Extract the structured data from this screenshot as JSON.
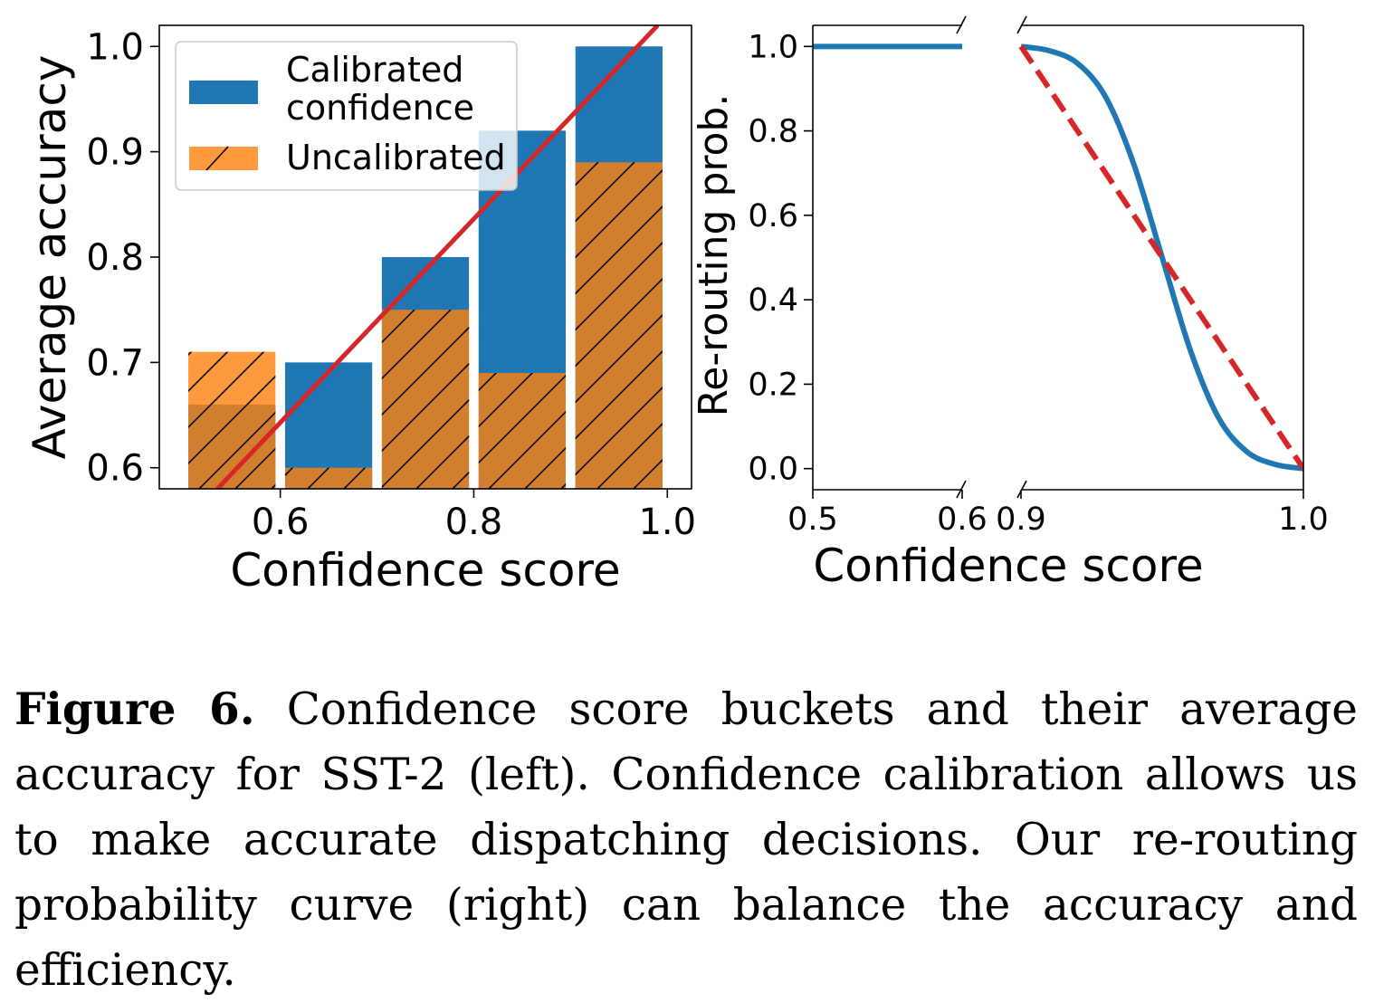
{
  "chart_data": [
    {
      "type": "bar",
      "xlabel": "Confidence score",
      "ylabel": "Average accuracy",
      "xlim": [
        0.475,
        1.025
      ],
      "ylim": [
        0.58,
        1.02
      ],
      "xticks": [
        0.6,
        0.8,
        1.0
      ],
      "xtick_labels": [
        "0.6",
        "0.8",
        "1.0"
      ],
      "yticks": [
        0.6,
        0.7,
        0.8,
        0.9,
        1.0
      ],
      "ytick_labels": [
        "0.6",
        "0.7",
        "0.8",
        "0.9",
        "1.0"
      ],
      "bucket_centers": [
        0.55,
        0.65,
        0.75,
        0.85,
        0.95
      ],
      "bar_width": 0.09,
      "series": [
        {
          "name": "Calibrated\nconfidence",
          "color": "#1f77b4",
          "values": [
            0.66,
            0.7,
            0.8,
            0.92,
            1.0
          ]
        },
        {
          "name": "Uncalibrated",
          "color": "#ff7f0e",
          "hatch": "/",
          "alpha": 0.8,
          "values": [
            0.71,
            0.6,
            0.75,
            0.69,
            0.89
          ]
        }
      ],
      "reference_line": {
        "color": "#d62728",
        "x": [
          0.535,
          0.99
        ],
        "y": [
          0.58,
          1.02
        ]
      },
      "legend_position": "upper-left",
      "grid": false
    },
    {
      "type": "line",
      "xlabel": "Confidence score",
      "ylabel": "Re-routing prob.",
      "broken_x_axis": true,
      "segments": [
        {
          "xlim": [
            0.5,
            0.6
          ]
        },
        {
          "xlim": [
            0.9,
            1.0
          ]
        }
      ],
      "ylim": [
        -0.05,
        1.05
      ],
      "xticks": [
        0.5,
        0.6,
        0.9,
        1.0
      ],
      "xtick_labels": [
        "0.5",
        "0.6",
        "0.9",
        "1.0"
      ],
      "yticks": [
        0.0,
        0.2,
        0.4,
        0.6,
        0.8,
        1.0
      ],
      "ytick_labels": [
        "0.0",
        "0.2",
        "0.4",
        "0.6",
        "0.8",
        "1.0"
      ],
      "series": [
        {
          "color": "#1f77b4",
          "style": "solid",
          "x": [
            0.5,
            0.6,
            0.9,
            0.91,
            0.92,
            0.93,
            0.94,
            0.95,
            0.96,
            0.97,
            0.98,
            0.99,
            1.0
          ],
          "y": [
            1.0,
            1.0,
            1.0,
            0.99,
            0.96,
            0.88,
            0.72,
            0.5,
            0.28,
            0.12,
            0.04,
            0.01,
            0.0
          ]
        },
        {
          "color": "#d62728",
          "style": "dashed",
          "x": [
            0.9,
            1.0
          ],
          "y": [
            1.0,
            0.0
          ]
        }
      ],
      "grid": false
    }
  ],
  "caption": {
    "label": "Figure 6.",
    "text": "Confidence score buckets and their average accuracy for SST-2 (left). Confidence calibration allows us to make accurate dispatching decisions. Our re-routing probability curve (right) can balance the accuracy and efficiency."
  }
}
